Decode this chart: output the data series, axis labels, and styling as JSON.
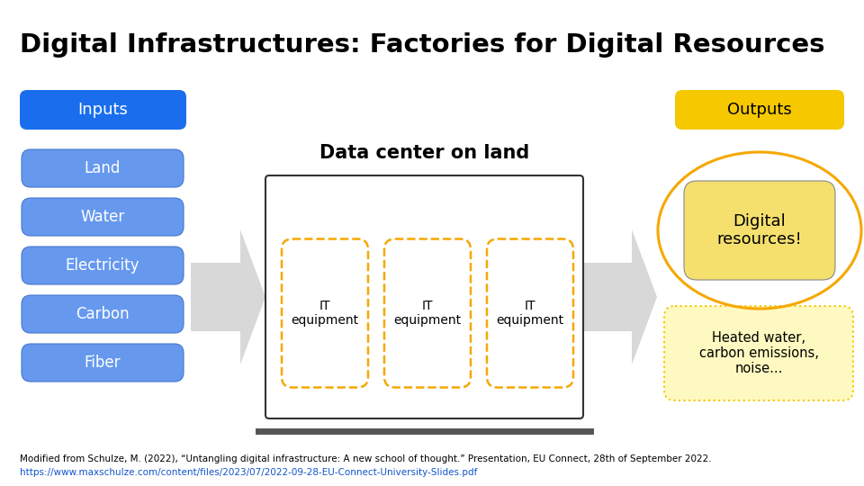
{
  "title": "Digital Infrastructures: Factories for Digital Resources",
  "title_fontsize": 21,
  "title_fontweight": "bold",
  "bg_color": "#ffffff",
  "inputs_label": "Inputs",
  "inputs_bg": "#1a6eee",
  "inputs_text_color": "#ffffff",
  "input_items": [
    "Land",
    "Water",
    "Electricity",
    "Carbon",
    "Fiber"
  ],
  "input_item_bg": "#6699ee",
  "input_item_text_color": "#ffffff",
  "outputs_label": "Outputs",
  "outputs_bg": "#f5c800",
  "outputs_text_color": "#000000",
  "datacenter_label": "Data center on land",
  "datacenter_label_fontsize": 15,
  "datacenter_label_fontweight": "bold",
  "it_label": "IT\nequipment",
  "digital_resources_text": "Digital\nresources!",
  "digital_resources_bg": "#f5e06e",
  "digital_resources_circle_color": "#f5a800",
  "heated_water_text": "Heated water,\ncarbon emissions,\nnoise...",
  "heated_water_bg": "#fef9c0",
  "heated_water_border": "#f5c800",
  "it_box_color": "#f5a800",
  "datacenter_box_color": "#333333",
  "footer_line1": "Modified from Schulze, M. (2022), “Untangling digital infrastructure: A new school of thought.” Presentation, EU Connect, 28th of September 2022.",
  "footer_line2": "https://www.maxschulze.com/content/files/2023/07/2022-09-28-EU-Connect-University-Slides.pdf",
  "footer_fontsize": 7.5,
  "footer_color": "#000000",
  "footer_url_color": "#1155cc",
  "arrow_color": "#d8d8d8"
}
